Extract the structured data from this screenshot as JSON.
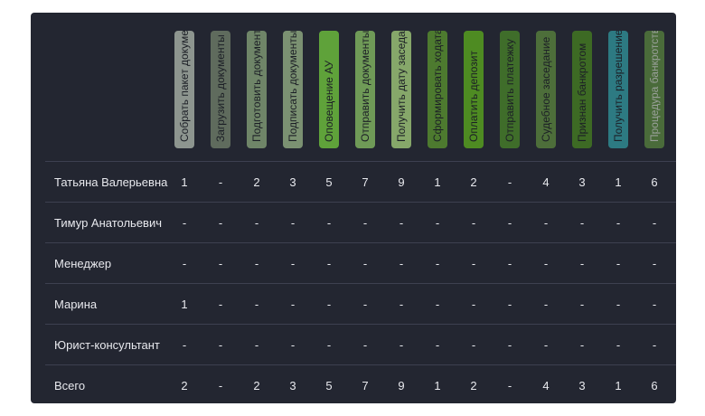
{
  "columns": [
    {
      "label": "Собрать пакет документов",
      "bg": "#8d958f",
      "fg": "#1c1f26"
    },
    {
      "label": "Загрузить документы",
      "bg": "#5f6b5d",
      "fg": "#1c1f26"
    },
    {
      "label": "Подготовить документы",
      "bg": "#6f8568",
      "fg": "#1c1f26"
    },
    {
      "label": "Подписать документы",
      "bg": "#7b9172",
      "fg": "#1c1f26"
    },
    {
      "label": "Оповещение АУ",
      "bg": "#5fa23a",
      "fg": "#1c1f26"
    },
    {
      "label": "Отправить документы",
      "bg": "#6f9a57",
      "fg": "#1c1f26"
    },
    {
      "label": "Получить дату заседания",
      "bg": "#86a76a",
      "fg": "#1c1f26"
    },
    {
      "label": "Сформировать ходатайство",
      "bg": "#4d7a2f",
      "fg": "#1c1f26"
    },
    {
      "label": "Оплатить депозит",
      "bg": "#4e8b22",
      "fg": "#1c1f26"
    },
    {
      "label": "Отправить платежку",
      "bg": "#3f6d2a",
      "fg": "#1c1f26"
    },
    {
      "label": "Судебное заседание",
      "bg": "#4d6e3a",
      "fg": "#1c1f26"
    },
    {
      "label": "Признан банкротом",
      "bg": "#3d6a24",
      "fg": "#1c1f26"
    },
    {
      "label": "Получить разрешение",
      "bg": "#2d7a82",
      "fg": "#1c1f26"
    },
    {
      "label": "Процедура банкротства",
      "bg": "#4a6b3a",
      "fg": "#9aa09a"
    }
  ],
  "rows": [
    {
      "name": "Татьяна Валерьевна",
      "values": [
        "1",
        "-",
        "2",
        "3",
        "5",
        "7",
        "9",
        "1",
        "2",
        "-",
        "4",
        "3",
        "1",
        "6"
      ]
    },
    {
      "name": "Тимур Анатольевич",
      "values": [
        "-",
        "-",
        "-",
        "-",
        "-",
        "-",
        "-",
        "-",
        "-",
        "-",
        "-",
        "-",
        "-",
        "-"
      ]
    },
    {
      "name": "Менеджер",
      "values": [
        "-",
        "-",
        "-",
        "-",
        "-",
        "-",
        "-",
        "-",
        "-",
        "-",
        "-",
        "-",
        "-",
        "-"
      ]
    },
    {
      "name": "Марина",
      "values": [
        "1",
        "-",
        "-",
        "-",
        "-",
        "-",
        "-",
        "-",
        "-",
        "-",
        "-",
        "-",
        "-",
        "-"
      ]
    },
    {
      "name": "Юрист-консультант",
      "values": [
        "-",
        "-",
        "-",
        "-",
        "-",
        "-",
        "-",
        "-",
        "-",
        "-",
        "-",
        "-",
        "-",
        "-"
      ]
    },
    {
      "name": "Всего",
      "values": [
        "2",
        "-",
        "2",
        "3",
        "5",
        "7",
        "9",
        "1",
        "2",
        "-",
        "4",
        "3",
        "1",
        "6"
      ]
    }
  ]
}
